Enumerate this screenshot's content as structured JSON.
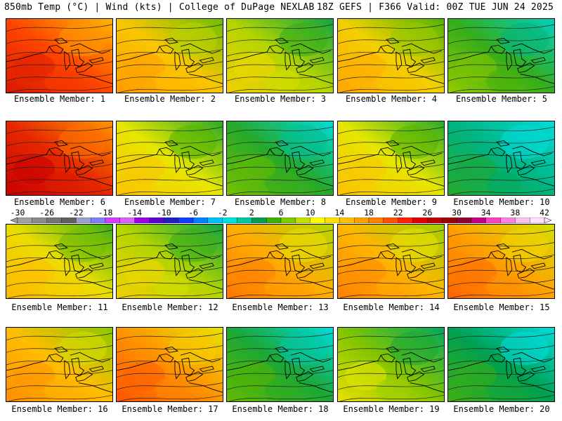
{
  "header": {
    "left": "850mb Temp (°C) | Wind (kts) | College of DuPage NEXLAB",
    "right": "18Z GEFS | F366 Valid: 00Z TUE JUN 24 2025"
  },
  "members": [
    {
      "label": "Ensemble Member: 1",
      "warmth": 0.82
    },
    {
      "label": "Ensemble Member: 2",
      "warmth": 0.55
    },
    {
      "label": "Ensemble Member: 3",
      "warmth": 0.4
    },
    {
      "label": "Ensemble Member: 4",
      "warmth": 0.52
    },
    {
      "label": "Ensemble Member: 5",
      "warmth": 0.25
    },
    {
      "label": "Ensemble Member: 6",
      "warmth": 0.9
    },
    {
      "label": "Ensemble Member: 7",
      "warmth": 0.45
    },
    {
      "label": "Ensemble Member: 8",
      "warmth": 0.22
    },
    {
      "label": "Ensemble Member: 9",
      "warmth": 0.45
    },
    {
      "label": "Ensemble Member: 10",
      "warmth": 0.1
    },
    {
      "label": "Ensemble Member: 11",
      "warmth": 0.48
    },
    {
      "label": "Ensemble Member: 12",
      "warmth": 0.4
    },
    {
      "label": "Ensemble Member: 13",
      "warmth": 0.62
    },
    {
      "label": "Ensemble Member: 14",
      "warmth": 0.6
    },
    {
      "label": "Ensemble Member: 15",
      "warmth": 0.65
    },
    {
      "label": "Ensemble Member: 16",
      "warmth": 0.58
    },
    {
      "label": "Ensemble Member: 17",
      "warmth": 0.68
    },
    {
      "label": "Ensemble Member: 18",
      "warmth": 0.2
    },
    {
      "label": "Ensemble Member: 19",
      "warmth": 0.35
    },
    {
      "label": "Ensemble Member: 20",
      "warmth": 0.15
    }
  ],
  "colorbar": {
    "labels": [
      "-30",
      "-26",
      "-22",
      "-18",
      "-14",
      "-10",
      "-6",
      "-2",
      "2",
      "6",
      "10",
      "14",
      "18",
      "22",
      "26",
      "30",
      "34",
      "38",
      "42"
    ],
    "colors": [
      "#a0a0a0",
      "#8a8a8a",
      "#747474",
      "#606060",
      "#9aa0c8",
      "#8080ff",
      "#d040ff",
      "#e060ff",
      "#a000e0",
      "#6000d0",
      "#2020c0",
      "#1040ff",
      "#0080ff",
      "#00c0ff",
      "#00e0e0",
      "#00c8a0",
      "#00a050",
      "#40b000",
      "#80c800",
      "#c0e000",
      "#ffff00",
      "#ffe000",
      "#ffc000",
      "#ffa000",
      "#ff8000",
      "#ff5000",
      "#ff2000",
      "#e00000",
      "#c00000",
      "#a00000",
      "#900030",
      "#c00080",
      "#ff40c0",
      "#ff80e0",
      "#ffc0f0",
      "#ffe0ff"
    ]
  }
}
